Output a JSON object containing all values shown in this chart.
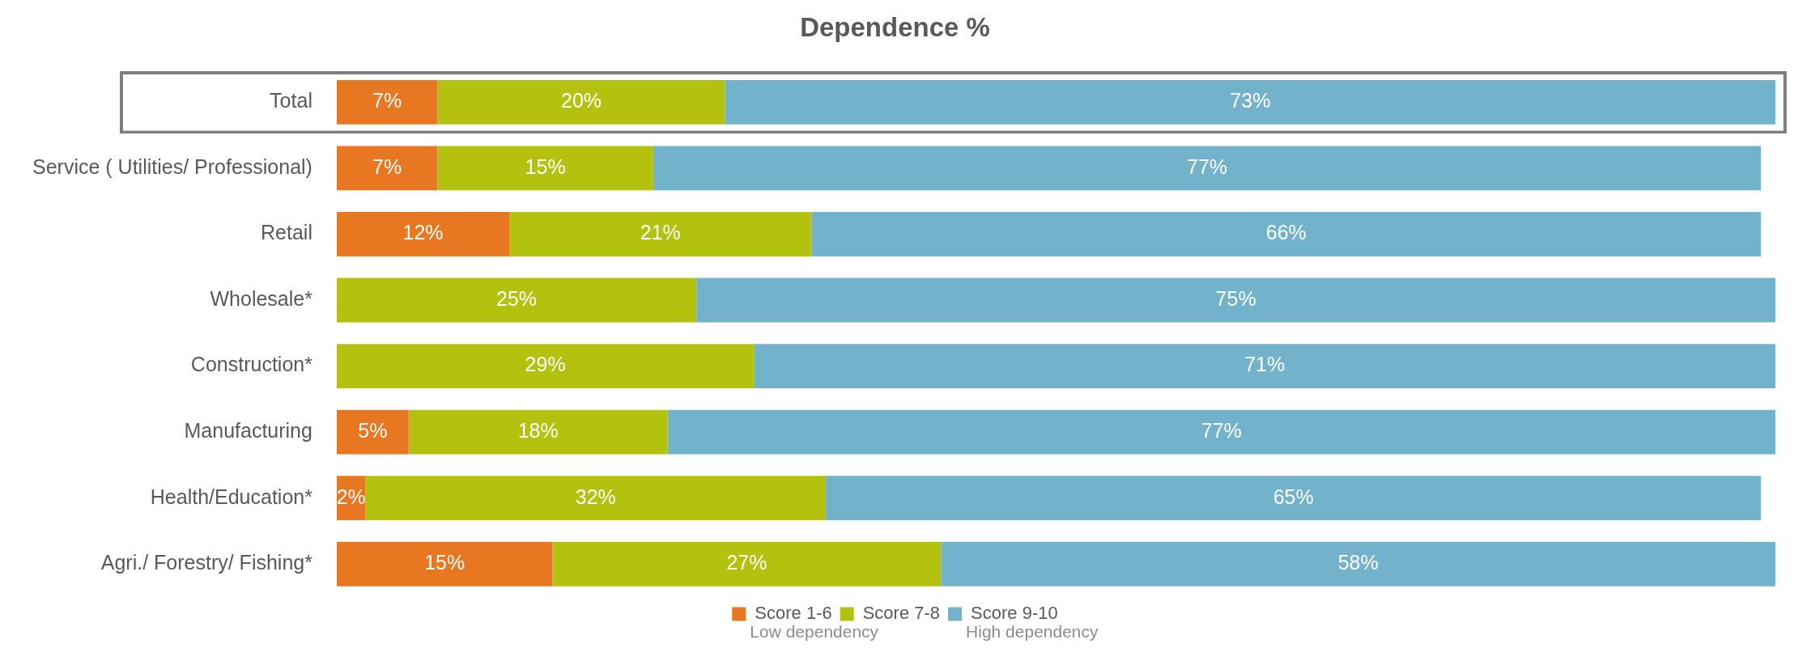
{
  "chart_data": {
    "type": "bar",
    "orientation": "horizontal",
    "stacked": true,
    "title": "Dependence %",
    "categories": [
      "Total",
      "Service ( Utilities/ Professional)",
      "Retail",
      "Wholesale*",
      "Construction*",
      "Manufacturing",
      "Health/Education*",
      "Agri./ Forestry/ Fishing*"
    ],
    "series": [
      {
        "name": "Score 1-6",
        "color": "#e87722",
        "values": [
          7,
          7,
          12,
          null,
          null,
          5,
          2,
          15
        ],
        "value_labels": [
          "7%",
          "7%",
          "12%",
          null,
          null,
          "5%",
          "2%",
          "15%"
        ]
      },
      {
        "name": "Score 7-8",
        "color": "#b5c10f",
        "values": [
          20,
          15,
          21,
          25,
          29,
          18,
          32,
          27
        ],
        "value_labels": [
          "20%",
          "15%",
          "21%",
          "25%",
          "29%",
          "18%",
          "32%",
          "27%"
        ]
      },
      {
        "name": "Score 9-10",
        "color": "#72b2cb",
        "values": [
          73,
          77,
          66,
          75,
          71,
          77,
          65,
          58
        ],
        "value_labels": [
          "73%",
          "77%",
          "66%",
          "75%",
          "71%",
          "77%",
          "65%",
          "58%"
        ]
      }
    ],
    "tick_labels": "y",
    "legend": "bottom",
    "annotations": [
      "Low dependency",
      "High dependency"
    ]
  }
}
